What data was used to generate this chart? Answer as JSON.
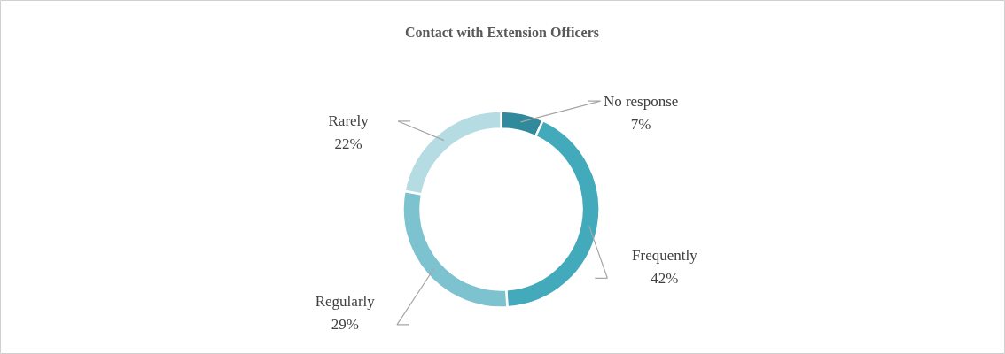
{
  "chart_data": {
    "type": "donut",
    "title": "Contact with Extension Officers",
    "categories": [
      "No response",
      "Frequently",
      "Regularly",
      "Rarely"
    ],
    "values": [
      7,
      42,
      29,
      22
    ],
    "value_labels": [
      "7%",
      "42%",
      "29%",
      "22%"
    ],
    "colors": [
      "#31899c",
      "#42aabb",
      "#7dc3cf",
      "#b6dce3"
    ]
  }
}
